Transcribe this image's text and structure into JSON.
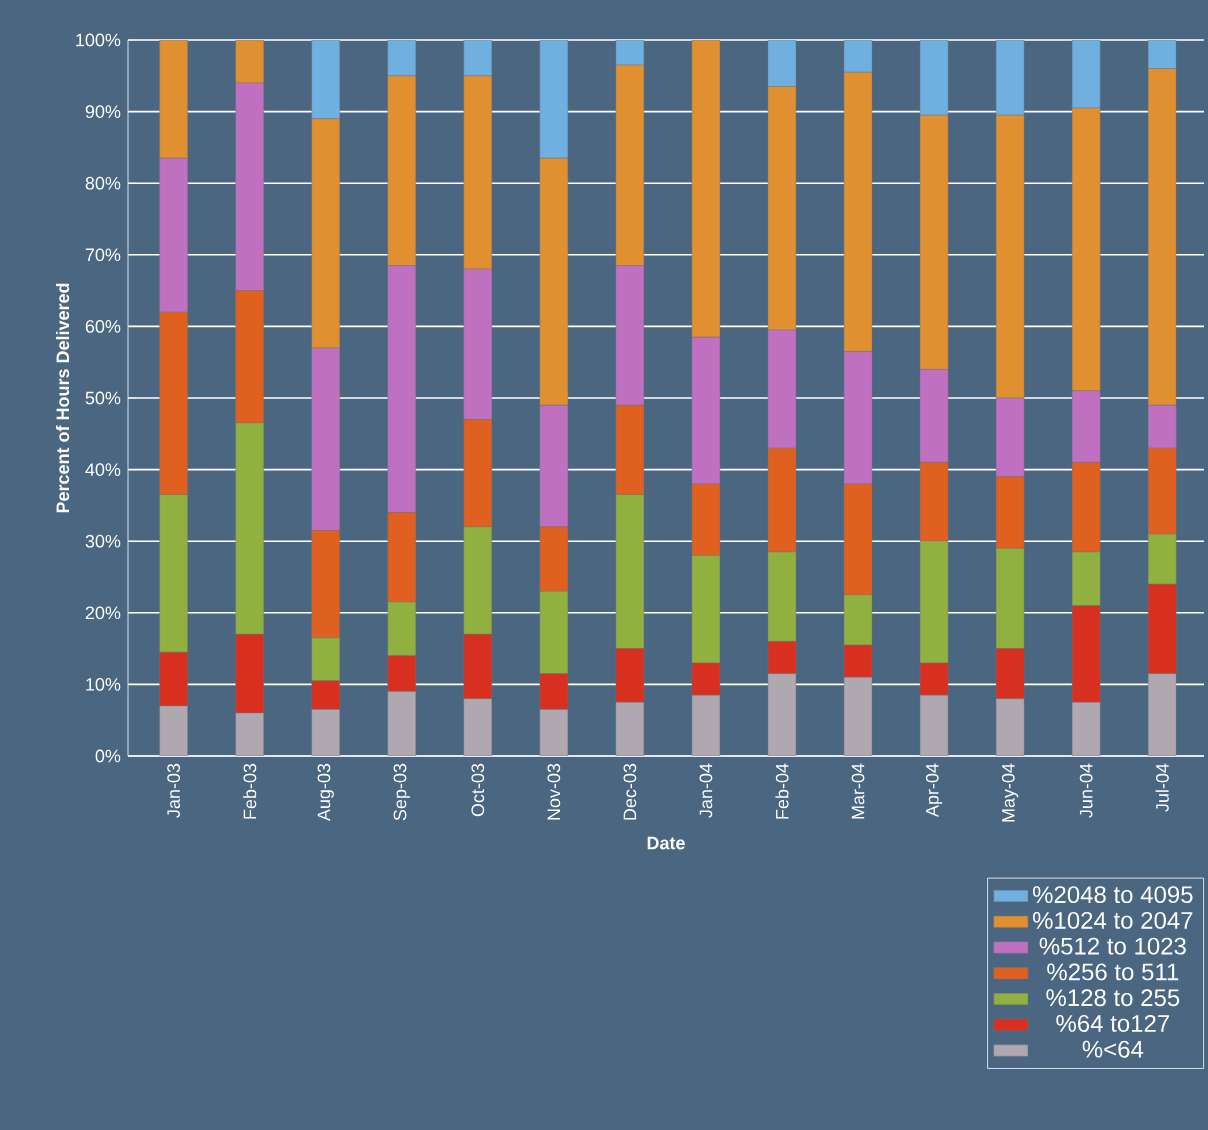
{
  "chart_data": {
    "type": "bar",
    "stacked": true,
    "xlabel": "Date",
    "ylabel": "Percent of Hours Delivered",
    "categories": [
      "Jan-03",
      "Feb-03",
      "Aug-03",
      "Sep-03",
      "Oct-03",
      "Nov-03",
      "Dec-03",
      "Jan-04",
      "Feb-04",
      "Mar-04",
      "Apr-04",
      "May-04",
      "Jun-04",
      "Jul-04"
    ],
    "series": [
      {
        "name": "%<64",
        "color": "#b0a8b0",
        "values": [
          7,
          6,
          6.5,
          9,
          8,
          6.5,
          7.5,
          8.5,
          11.5,
          11,
          8.5,
          8,
          7.5,
          11.5
        ]
      },
      {
        "name": "%64 to127",
        "color": "#d83020",
        "values": [
          7.5,
          11,
          4,
          5,
          9,
          5,
          7.5,
          4.5,
          4.5,
          4.5,
          4.5,
          7,
          13.5,
          12.5
        ]
      },
      {
        "name": "%128 to 255",
        "color": "#90b040",
        "values": [
          22,
          29.5,
          6,
          7.5,
          15,
          11.5,
          21.5,
          15,
          12.5,
          7,
          17,
          14,
          7.5,
          7
        ]
      },
      {
        "name": "%256 to 511",
        "color": "#e06020",
        "values": [
          25.5,
          18.5,
          15,
          12.5,
          15,
          9,
          12.5,
          10,
          14.5,
          15.5,
          11,
          10,
          12.5,
          12
        ]
      },
      {
        "name": "%512 to 1023",
        "color": "#c070c0",
        "values": [
          21.5,
          29,
          25.5,
          34.5,
          21,
          17,
          19.5,
          20.5,
          16.5,
          18.5,
          13,
          11,
          10,
          6
        ]
      },
      {
        "name": "%1024 to 2047",
        "color": "#e09030",
        "values": [
          16.5,
          6,
          32,
          26.5,
          27,
          34.5,
          28,
          41.5,
          34,
          39,
          35.5,
          39.5,
          39.5,
          47
        ]
      },
      {
        "name": "%2048 to 4095",
        "color": "#70b0e0",
        "values": [
          0,
          0,
          11,
          5,
          5,
          16.5,
          3.5,
          0,
          6.5,
          4.5,
          10.5,
          10.5,
          9.5,
          4
        ]
      }
    ],
    "ylim": [
      0,
      100
    ],
    "yticks": [
      {
        "value": 0,
        "label": "0%"
      },
      {
        "value": 10,
        "label": "10%"
      },
      {
        "value": 20,
        "label": "20%"
      },
      {
        "value": 30,
        "label": "30%"
      },
      {
        "value": 40,
        "label": "40%"
      },
      {
        "value": 50,
        "label": "50%"
      },
      {
        "value": 60,
        "label": "60%"
      },
      {
        "value": 70,
        "label": "70%"
      },
      {
        "value": 80,
        "label": "80%"
      },
      {
        "value": 90,
        "label": "90%"
      },
      {
        "value": 100,
        "label": "100%"
      }
    ],
    "grid": "y",
    "legend": "bottom right"
  }
}
